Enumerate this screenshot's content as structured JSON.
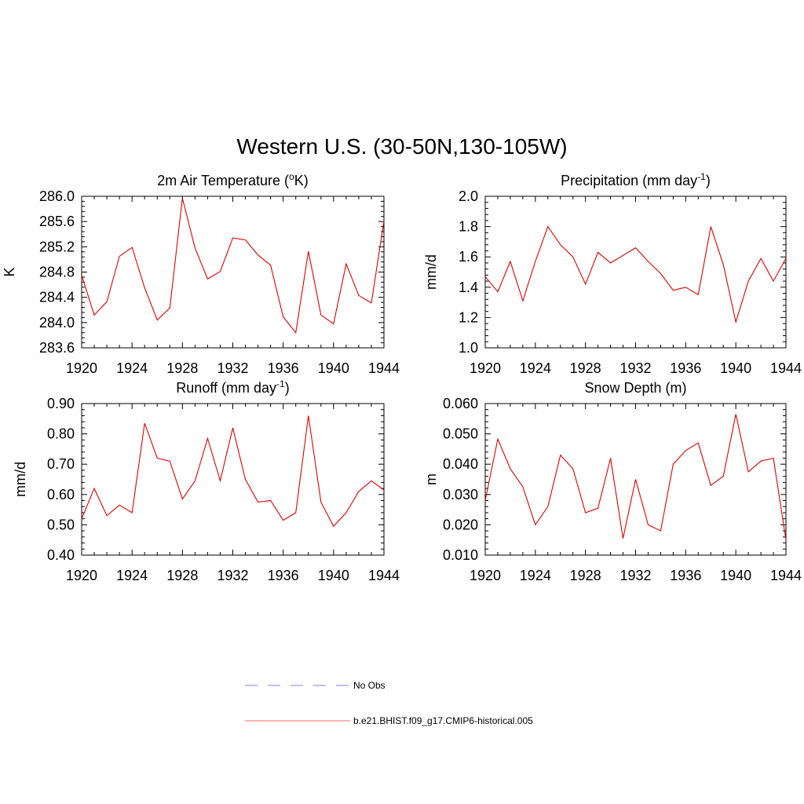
{
  "figure": {
    "title": "Western U.S. (30-50N,130-105W)"
  },
  "colors": {
    "model_line": "#e00000",
    "obs_line": "#9999ee",
    "axis": "#000000"
  },
  "legend": {
    "items": [
      {
        "label": "No Obs",
        "style": "dashed",
        "color": "#9999ee"
      },
      {
        "label": "b.e21.BHIST.f09_g17.CMIP6-historical.005",
        "style": "solid",
        "color": "#ff8080"
      }
    ]
  },
  "chart_data": [
    {
      "type": "line",
      "title_main": "2m Air Temperature (",
      "title_sup": "o",
      "title_end": "K)",
      "ylabel": "K",
      "xlim": [
        1920,
        1944
      ],
      "ylim": [
        283.6,
        286.0
      ],
      "xticks": [
        "1920",
        "1924",
        "1928",
        "1932",
        "1936",
        "1940",
        "1944"
      ],
      "yticks": [
        "283.6",
        "284.0",
        "284.4",
        "284.8",
        "285.2",
        "285.6",
        "286.0"
      ],
      "x": [
        1920,
        1921,
        1922,
        1923,
        1924,
        1925,
        1926,
        1927,
        1928,
        1929,
        1930,
        1931,
        1932,
        1933,
        1934,
        1935,
        1936,
        1937,
        1938,
        1939,
        1940,
        1941,
        1942,
        1943,
        1944
      ],
      "series": [
        {
          "values": [
            284.75,
            284.12,
            284.33,
            285.05,
            285.19,
            284.55,
            284.04,
            284.23,
            285.97,
            285.18,
            284.69,
            284.81,
            285.34,
            285.31,
            285.07,
            284.91,
            284.09,
            283.84,
            285.13,
            284.12,
            283.98,
            284.93,
            284.43,
            284.31,
            285.61
          ]
        }
      ]
    },
    {
      "type": "line",
      "title_main": "Precipitation (mm day",
      "title_sup": "-1",
      "title_end": ")",
      "ylabel": "mm/d",
      "xlim": [
        1920,
        1944
      ],
      "ylim": [
        1.0,
        2.0
      ],
      "xticks": [
        "1920",
        "1924",
        "1928",
        "1932",
        "1936",
        "1940",
        "1944"
      ],
      "yticks": [
        "1.0",
        "1.2",
        "1.4",
        "1.6",
        "1.8",
        "2.0"
      ],
      "x": [
        1920,
        1921,
        1922,
        1923,
        1924,
        1925,
        1926,
        1927,
        1928,
        1929,
        1930,
        1931,
        1932,
        1933,
        1934,
        1935,
        1936,
        1937,
        1938,
        1939,
        1940,
        1941,
        1942,
        1943,
        1944
      ],
      "series": [
        {
          "values": [
            1.47,
            1.37,
            1.57,
            1.31,
            1.57,
            1.8,
            1.68,
            1.6,
            1.42,
            1.63,
            1.56,
            1.61,
            1.66,
            1.57,
            1.49,
            1.38,
            1.4,
            1.35,
            1.8,
            1.55,
            1.17,
            1.44,
            1.59,
            1.44,
            1.59
          ]
        }
      ]
    },
    {
      "type": "line",
      "title_main": "Runoff (mm day",
      "title_sup": "-1",
      "title_end": ")",
      "ylabel": "mm/d",
      "xlim": [
        1920,
        1944
      ],
      "ylim": [
        0.4,
        0.9
      ],
      "xticks": [
        "1920",
        "1924",
        "1928",
        "1932",
        "1936",
        "1940",
        "1944"
      ],
      "yticks": [
        "0.40",
        "0.50",
        "0.60",
        "0.70",
        "0.80",
        "0.90"
      ],
      "x": [
        1920,
        1921,
        1922,
        1923,
        1924,
        1925,
        1926,
        1927,
        1928,
        1929,
        1930,
        1931,
        1932,
        1933,
        1934,
        1935,
        1936,
        1937,
        1938,
        1939,
        1940,
        1941,
        1942,
        1943,
        1944
      ],
      "series": [
        {
          "values": [
            0.52,
            0.62,
            0.53,
            0.565,
            0.54,
            0.835,
            0.72,
            0.71,
            0.585,
            0.645,
            0.785,
            0.645,
            0.82,
            0.65,
            0.575,
            0.58,
            0.515,
            0.54,
            0.86,
            0.575,
            0.495,
            0.54,
            0.61,
            0.645,
            0.615
          ]
        }
      ]
    },
    {
      "type": "line",
      "title_main": "Snow Depth (m)",
      "title_sup": "",
      "title_end": "",
      "ylabel": "m",
      "xlim": [
        1920,
        1944
      ],
      "ylim": [
        0.01,
        0.06
      ],
      "xticks": [
        "1920",
        "1924",
        "1928",
        "1932",
        "1936",
        "1940",
        "1944"
      ],
      "yticks": [
        "0.010",
        "0.020",
        "0.030",
        "0.040",
        "0.050",
        "0.060"
      ],
      "x": [
        1920,
        1921,
        1922,
        1923,
        1924,
        1925,
        1926,
        1927,
        1928,
        1929,
        1930,
        1931,
        1932,
        1933,
        1934,
        1935,
        1936,
        1937,
        1938,
        1939,
        1940,
        1941,
        1942,
        1943,
        1944
      ],
      "series": [
        {
          "values": [
            0.028,
            0.0483,
            0.0385,
            0.0325,
            0.02,
            0.026,
            0.043,
            0.0385,
            0.024,
            0.0255,
            0.042,
            0.0155,
            0.035,
            0.02,
            0.018,
            0.04,
            0.0445,
            0.047,
            0.033,
            0.036,
            0.0565,
            0.0375,
            0.041,
            0.042,
            0.015
          ]
        }
      ]
    }
  ]
}
